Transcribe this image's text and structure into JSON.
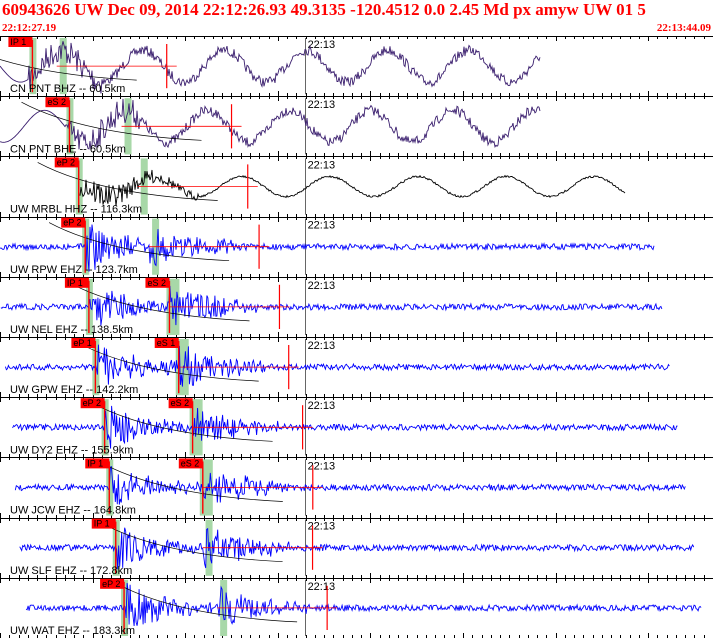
{
  "header": {
    "title": "60943626 UW Dec 09, 2014 22:12:26.93    49.3135 -120.4512  0.0 2.45 Md px amyw UW 01    5",
    "start_time": "22:12:27.19",
    "end_time": "22:13:44.09",
    "title_color": "#ff0000"
  },
  "chart_data": {
    "type": "seismogram",
    "event_id": "60943626",
    "network": "UW",
    "origin_date": "Dec 09, 2014",
    "origin_time": "22:12:26.93",
    "latitude": 49.3135,
    "longitude": -120.4512,
    "depth": 0.0,
    "magnitude": 2.45,
    "magnitude_type": "Md",
    "time_window": [
      "22:12:27.19",
      "22:13:44.09"
    ],
    "minute_marker": "22:13",
    "colors": {
      "broadband": "#3a1e6e",
      "strong": "#000000",
      "short_period": "#0000ff",
      "pick": "#ff0000",
      "pick_window": "#a8d8a8"
    },
    "traces": [
      {
        "label": "CN PNT BHZ -- 60.5km",
        "color_key": "broadband",
        "picks": [
          {
            "label": "IP 1",
            "t": 3.5
          }
        ]
      },
      {
        "label": "CN PNT BHE -- 60.5km",
        "color_key": "broadband",
        "picks": [
          {
            "label": "eS 2",
            "t": 7.5
          }
        ]
      },
      {
        "label": "UW MRBL HHZ -- 116.3km",
        "color_key": "strong",
        "picks": [
          {
            "label": "eP 2",
            "t": 8.5
          }
        ]
      },
      {
        "label": "UW RPW EHZ -- 123.7km",
        "color_key": "short_period",
        "picks": [
          {
            "label": "eP 2",
            "t": 9.2
          }
        ]
      },
      {
        "label": "UW NEL EHZ -- 138.5km",
        "color_key": "short_period",
        "picks": [
          {
            "label": "IP 1",
            "t": 9.6
          },
          {
            "label": "eS 2",
            "t": 18.3
          }
        ]
      },
      {
        "label": "UW GPW EHZ -- 142.2km",
        "color_key": "short_period",
        "picks": [
          {
            "label": "eP 1",
            "t": 10.3
          },
          {
            "label": "eS 1",
            "t": 19.3
          }
        ]
      },
      {
        "label": "UW DY2 EHZ -- 155.9km",
        "color_key": "short_period",
        "picks": [
          {
            "label": "eP 2",
            "t": 11.3
          },
          {
            "label": "eS 2",
            "t": 20.8
          }
        ]
      },
      {
        "label": "UW JCW EHZ -- 164.8km",
        "color_key": "short_period",
        "picks": [
          {
            "label": "IP 1",
            "t": 11.8
          },
          {
            "label": "eS 2",
            "t": 21.9
          }
        ]
      },
      {
        "label": "UW SLF EHZ -- 172.8km",
        "color_key": "short_period",
        "picks": [
          {
            "label": "IP 1",
            "t": 12.5
          }
        ]
      },
      {
        "label": "UW WAT EHZ -- 183.3km",
        "color_key": "short_period",
        "picks": [
          {
            "label": "eP 2",
            "t": 13.4
          }
        ]
      }
    ]
  }
}
